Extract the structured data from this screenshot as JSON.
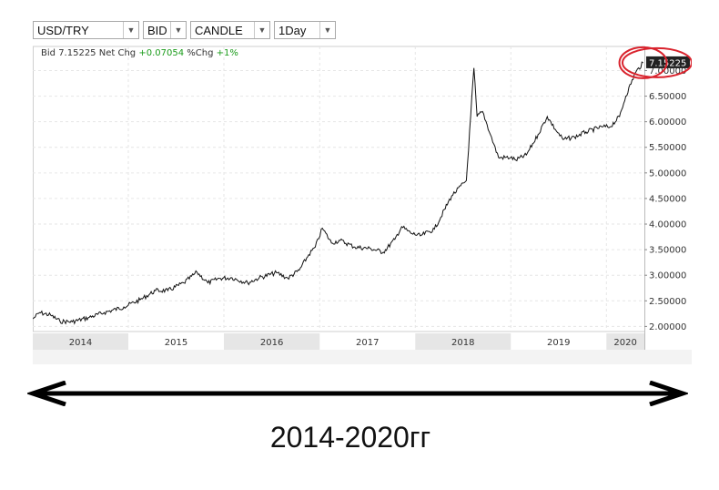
{
  "toolbar": {
    "symbol": "USD/TRY",
    "price_side": "BID",
    "chart_style": "CANDLE",
    "interval": "1Day",
    "dropdown_glyph": "▼"
  },
  "info_bar": {
    "bid_label": "Bid",
    "bid_value": "7.15225",
    "net_chg_label": "Net Chg",
    "net_chg_value": "+0.07054",
    "pct_chg_label": "%Chg",
    "pct_chg_value": "+1%"
  },
  "last_price_label": "7.15225",
  "annotation": {
    "caption": "2014-2020гг",
    "highlight_color": "#d9232d"
  },
  "colors": {
    "line": "#111111",
    "positive": "#1a9b1a",
    "price_tag": "#222222",
    "year_band": "#e6e6e6"
  },
  "chart_data": {
    "type": "line",
    "series": [
      {
        "values": [
          [
            "2014-01-02",
            2.15
          ],
          [
            "2014-01-27",
            2.27
          ],
          [
            "2014-03-10",
            2.22
          ],
          [
            "2014-04-15",
            2.1
          ],
          [
            "2014-06-01",
            2.09
          ],
          [
            "2014-08-01",
            2.17
          ],
          [
            "2014-10-01",
            2.27
          ],
          [
            "2014-12-15",
            2.38
          ],
          [
            "2015-02-15",
            2.52
          ],
          [
            "2015-04-15",
            2.7
          ],
          [
            "2015-06-01",
            2.7
          ],
          [
            "2015-08-01",
            2.85
          ],
          [
            "2015-09-20",
            3.06
          ],
          [
            "2015-11-01",
            2.85
          ],
          [
            "2015-12-15",
            2.94
          ],
          [
            "2016-02-01",
            2.95
          ],
          [
            "2016-04-01",
            2.85
          ],
          [
            "2016-05-15",
            2.95
          ],
          [
            "2016-07-20",
            3.05
          ],
          [
            "2016-09-01",
            2.94
          ],
          [
            "2016-10-15",
            3.1
          ],
          [
            "2016-11-20",
            3.4
          ],
          [
            "2016-12-15",
            3.55
          ],
          [
            "2017-01-11",
            3.92
          ],
          [
            "2017-02-15",
            3.63
          ],
          [
            "2017-03-20",
            3.68
          ],
          [
            "2017-05-15",
            3.55
          ],
          [
            "2017-07-15",
            3.52
          ],
          [
            "2017-09-01",
            3.45
          ],
          [
            "2017-10-15",
            3.7
          ],
          [
            "2017-11-10",
            3.95
          ],
          [
            "2017-12-15",
            3.82
          ],
          [
            "2018-01-20",
            3.77
          ],
          [
            "2018-03-15",
            3.9
          ],
          [
            "2018-05-20",
            4.55
          ],
          [
            "2018-07-15",
            4.85
          ],
          [
            "2018-08-13",
            7.05
          ],
          [
            "2018-08-25",
            6.1
          ],
          [
            "2018-09-15",
            6.2
          ],
          [
            "2018-10-15",
            5.75
          ],
          [
            "2018-11-15",
            5.3
          ],
          [
            "2018-12-31",
            5.3
          ],
          [
            "2019-01-20",
            5.25
          ],
          [
            "2019-03-01",
            5.35
          ],
          [
            "2019-04-15",
            5.75
          ],
          [
            "2019-05-20",
            6.1
          ],
          [
            "2019-06-20",
            5.85
          ],
          [
            "2019-07-20",
            5.65
          ],
          [
            "2019-09-01",
            5.7
          ],
          [
            "2019-10-15",
            5.8
          ],
          [
            "2019-12-15",
            5.9
          ],
          [
            "2020-01-15",
            5.9
          ],
          [
            "2020-02-20",
            6.1
          ],
          [
            "2020-03-15",
            6.5
          ],
          [
            "2020-04-20",
            6.95
          ],
          [
            "2020-05-20",
            7.15225
          ]
        ]
      }
    ],
    "y_ticks": [
      "2.00000",
      "2.50000",
      "3.00000",
      "3.50000",
      "4.00000",
      "4.50000",
      "5.00000",
      "5.50000",
      "6.00000",
      "6.50000",
      "7.00000"
    ],
    "x_ticks": [
      "2014",
      "2015",
      "2016",
      "2017",
      "2018",
      "2019",
      "2020"
    ],
    "ylim": [
      1.9,
      7.4
    ],
    "xlim": [
      "2014-01-01",
      "2020-05-25"
    ],
    "grid": true,
    "legend": "none"
  }
}
